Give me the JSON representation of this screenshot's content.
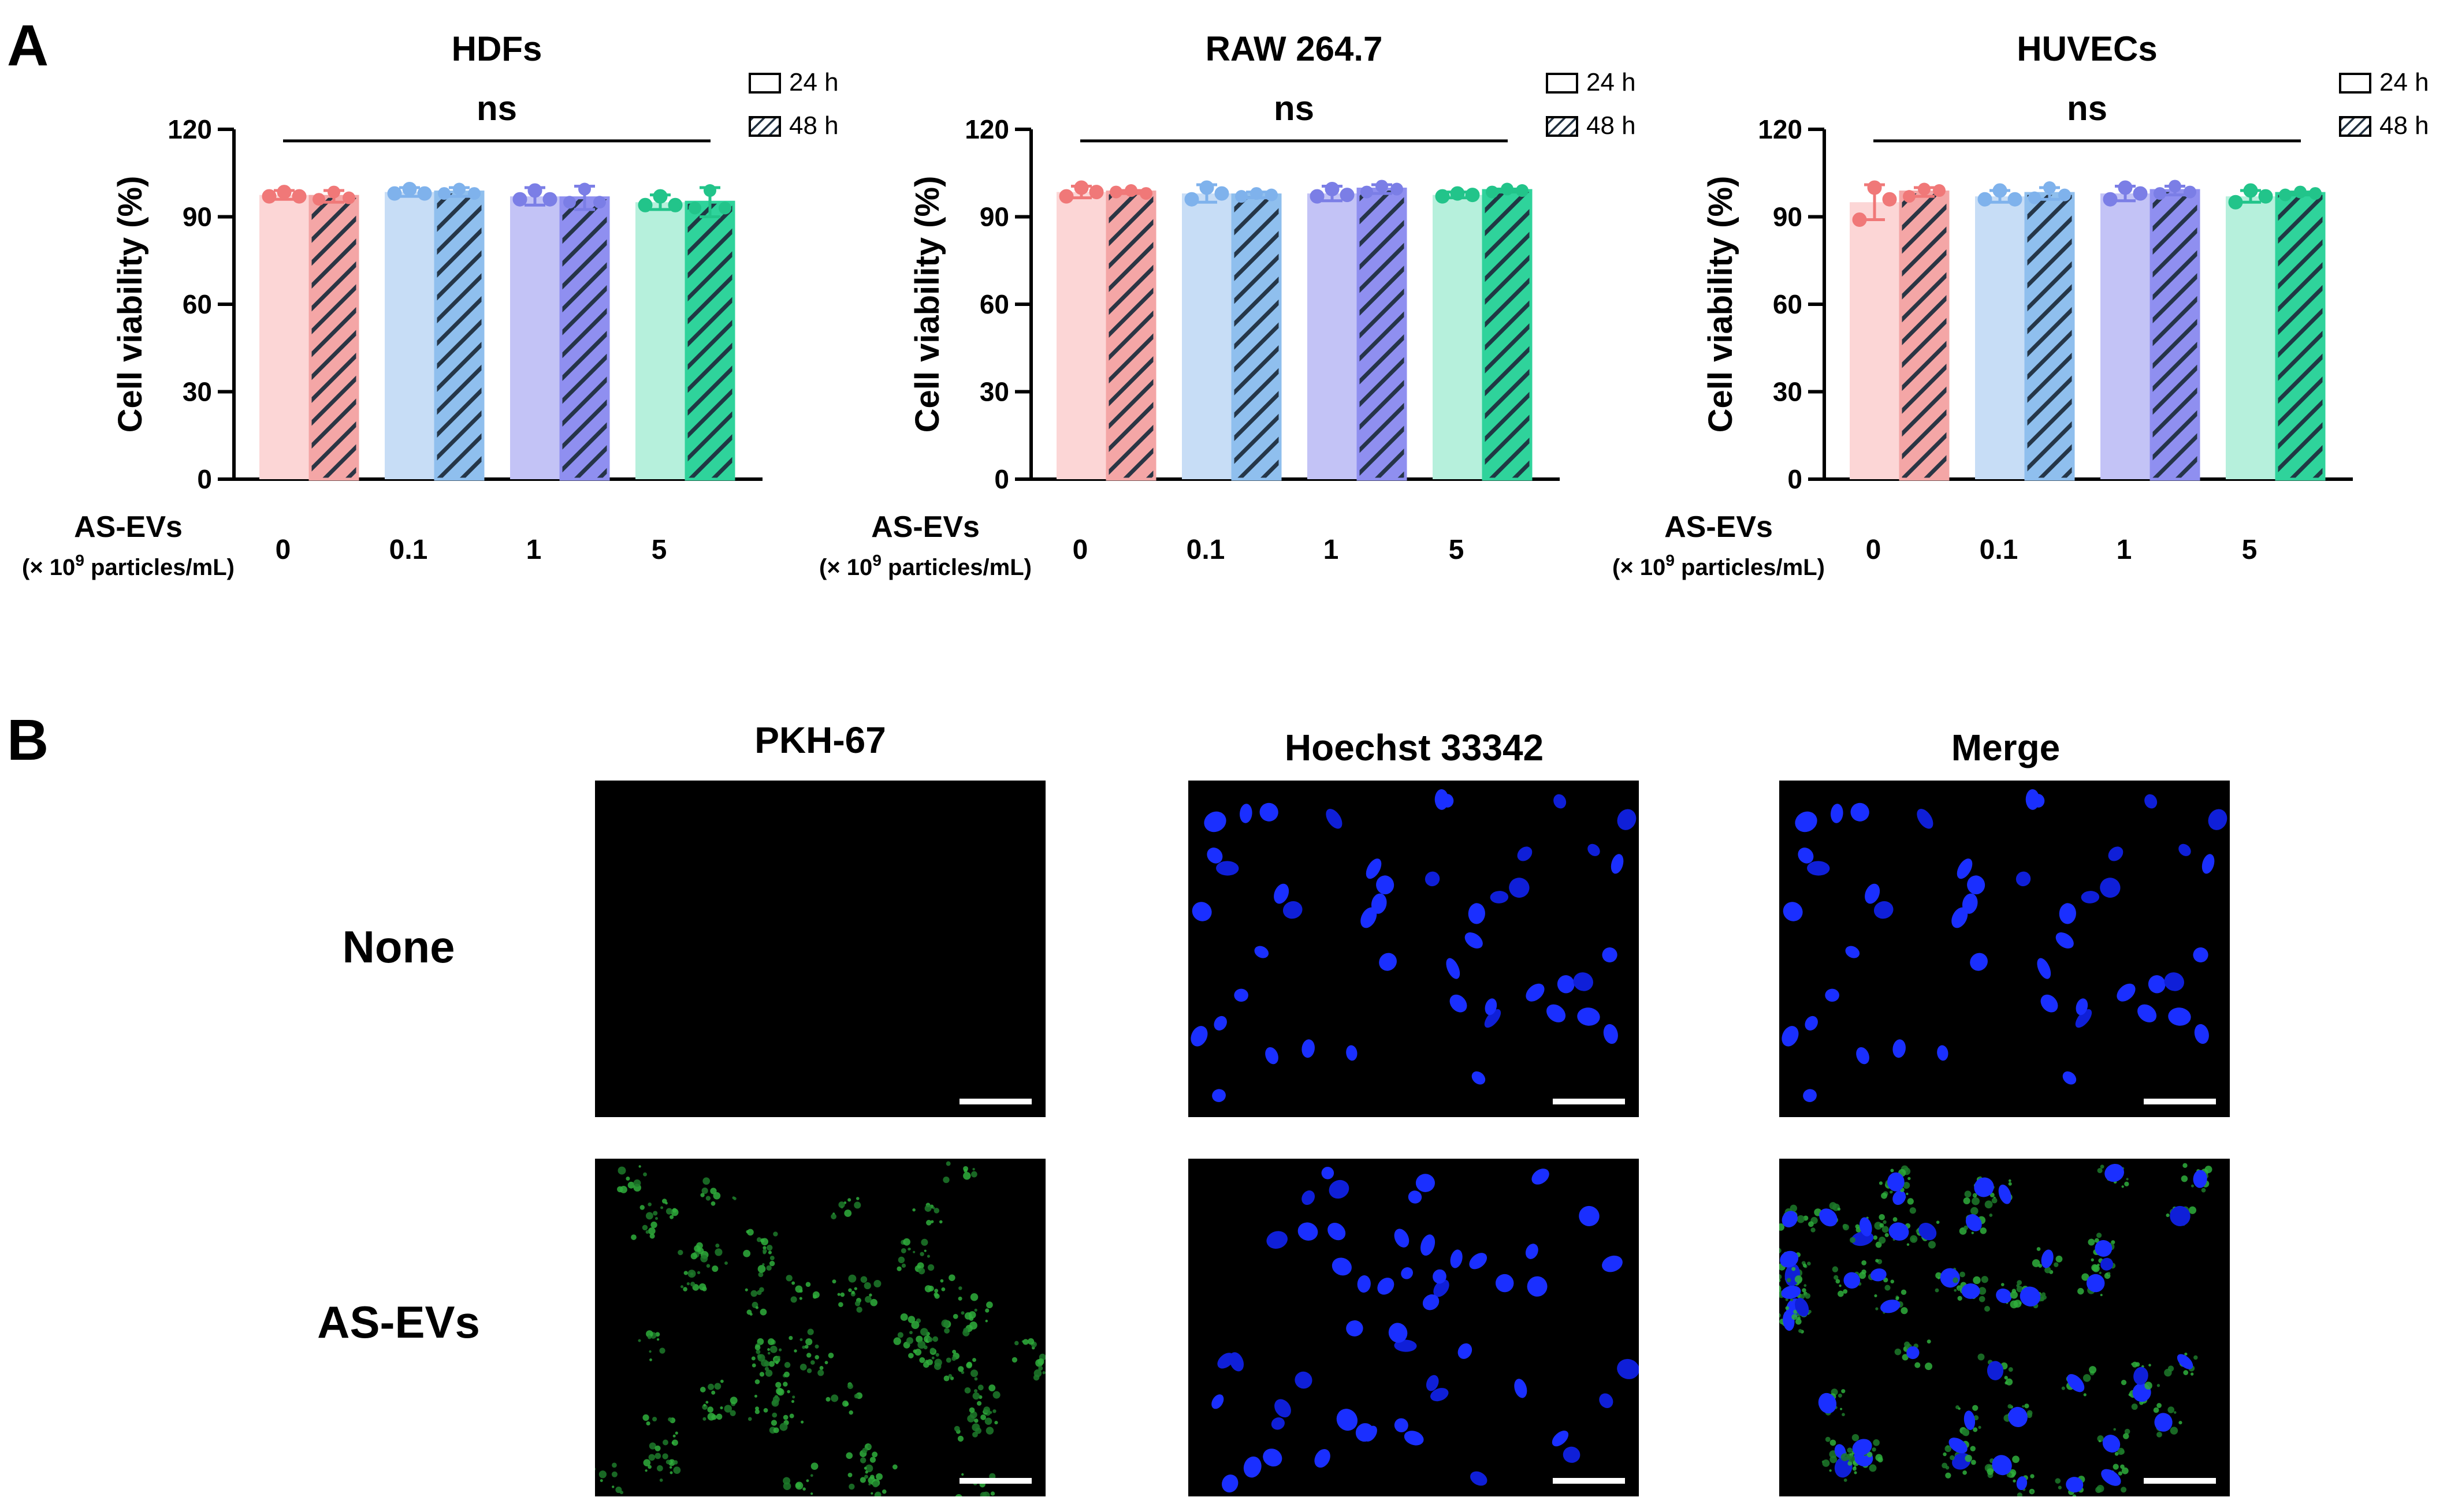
{
  "panel_a_label": "A",
  "panel_b_label": "B",
  "chart_data": [
    {
      "type": "bar",
      "title": "HDFs",
      "xlabel_line1": "AS-EVs",
      "xlabel_line2_prefix": "(× 10",
      "xlabel_line2_sup": "9",
      "xlabel_line2_suffix": " particles/mL)",
      "ylabel": "Cell viability (%)",
      "ylim": [
        0,
        120
      ],
      "yticks": [
        0,
        30,
        60,
        90,
        120
      ],
      "categories": [
        "0",
        "0.1",
        "1",
        "5"
      ],
      "legend_position": "top-right",
      "significance": "ns",
      "series": [
        {
          "name": "24 h",
          "values": [
            97.5,
            98.5,
            97.0,
            95.0
          ],
          "errors": [
            1.5,
            1.5,
            3.0,
            2.5
          ]
        },
        {
          "name": "48 h",
          "values": [
            97.0,
            98.5,
            96.5,
            95.0
          ],
          "errors": [
            2.0,
            1.5,
            4.0,
            5.0
          ]
        }
      ],
      "points": [
        [
          [
            97,
            98.5,
            97
          ],
          [
            96,
            98.5,
            96.5
          ]
        ],
        [
          [
            98,
            99.5,
            98
          ],
          [
            98,
            99.5,
            98
          ]
        ],
        [
          [
            96,
            99,
            96
          ],
          [
            95,
            99.5,
            95
          ]
        ],
        [
          [
            94,
            97,
            94
          ],
          [
            93,
            99,
            93
          ]
        ]
      ]
    },
    {
      "type": "bar",
      "title": "RAW 264.7",
      "xlabel_line1": "AS-EVs",
      "xlabel_line2_prefix": "(× 10",
      "xlabel_line2_sup": "9",
      "xlabel_line2_suffix": " particles/mL)",
      "ylabel": "Cell viability (%)",
      "ylim": [
        0,
        120
      ],
      "yticks": [
        0,
        30,
        60,
        90,
        120
      ],
      "categories": [
        "0",
        "0.1",
        "1",
        "5"
      ],
      "legend_position": "top-right",
      "significance": "ns",
      "series": [
        {
          "name": "24 h",
          "values": [
            98.5,
            98.0,
            98.0,
            97.5
          ],
          "errors": [
            2.0,
            3.0,
            2.5,
            1.0
          ]
        },
        {
          "name": "48 h",
          "values": [
            98.5,
            97.5,
            99.5,
            99.0
          ],
          "errors": [
            0.5,
            1.0,
            1.5,
            0.5
          ]
        }
      ],
      "points": [
        [
          [
            97,
            100,
            98.5
          ],
          [
            98.5,
            99,
            98
          ]
        ],
        [
          [
            96,
            100,
            98
          ],
          [
            97,
            98,
            97.5
          ]
        ],
        [
          [
            97,
            99.5,
            97.5
          ],
          [
            98.5,
            100.5,
            99.5
          ]
        ],
        [
          [
            97,
            98,
            97.5
          ],
          [
            98.5,
            99.5,
            99
          ]
        ]
      ]
    },
    {
      "type": "bar",
      "title": "HUVECs",
      "xlabel_line1": "AS-EVs",
      "xlabel_line2_prefix": "(× 10",
      "xlabel_line2_sup": "9",
      "xlabel_line2_suffix": " particles/mL)",
      "ylabel": "Cell viability (%)",
      "ylim": [
        0,
        120
      ],
      "yticks": [
        0,
        30,
        60,
        90,
        120
      ],
      "categories": [
        "0",
        "0.1",
        "1",
        "5"
      ],
      "legend_position": "top-right",
      "significance": "ns",
      "series": [
        {
          "name": "24 h",
          "values": [
            95.0,
            97.0,
            98.0,
            97.0
          ],
          "errors": [
            6.0,
            2.0,
            2.5,
            2.0
          ]
        },
        {
          "name": "48 h",
          "values": [
            98.5,
            98.0,
            99.0,
            98.0
          ],
          "errors": [
            1.5,
            2.0,
            1.5,
            0.5
          ]
        }
      ],
      "points": [
        [
          [
            89,
            100,
            96
          ],
          [
            97,
            99.5,
            99
          ]
        ],
        [
          [
            96,
            99,
            96
          ],
          [
            96.5,
            100,
            97.5
          ]
        ],
        [
          [
            96,
            100,
            98
          ],
          [
            98,
            100.5,
            98.5
          ]
        ],
        [
          [
            95,
            99,
            97
          ],
          [
            97.5,
            98.5,
            98
          ]
        ]
      ]
    }
  ],
  "colors": {
    "groups_24h": [
      "#fcd6d6",
      "#c7ddf6",
      "#c3c3f6",
      "#b6f0dc"
    ],
    "groups_48h": [
      "#f4a6a6",
      "#8fbfee",
      "#8f8ff0",
      "#2fd39b"
    ],
    "markers": [
      "#f07878",
      "#7fb2ec",
      "#7b7ee6",
      "#22c48a"
    ],
    "hatch": "#1f2f3f"
  },
  "microscopy": {
    "columns": [
      "PKH-67",
      "Hoechst 33342",
      "Merge"
    ],
    "rows": [
      "None",
      "AS-EVs"
    ]
  }
}
